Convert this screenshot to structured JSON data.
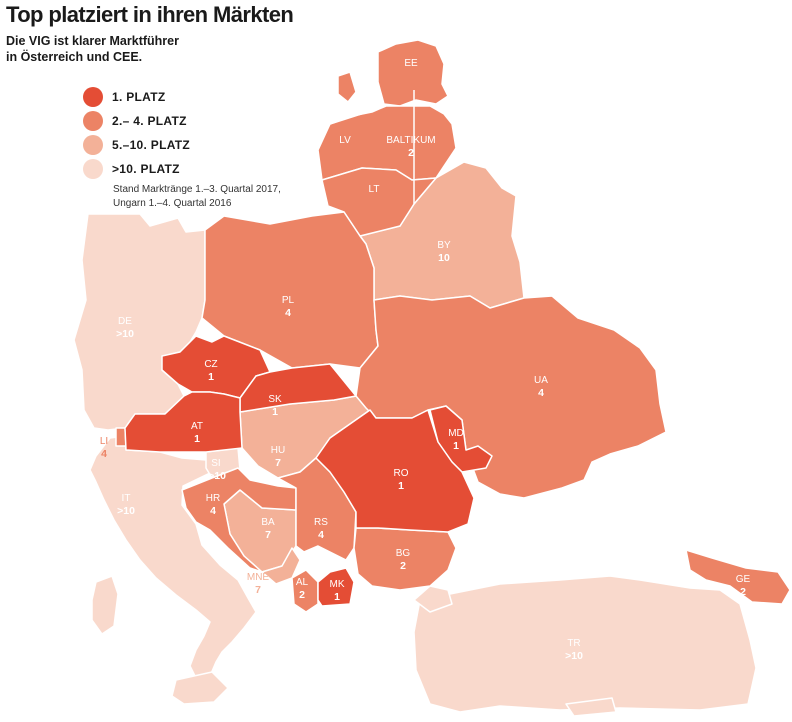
{
  "title": "Top platziert in ihren Märkten",
  "subtitle": [
    "Die VIG ist klarer Marktführer",
    "in Österreich und CEE."
  ],
  "colors": {
    "rank1": "#e44d35",
    "rank2_4": "#ec8365",
    "rank5_10": "#f3b198",
    "rank_gt10": "#f9d9cc"
  },
  "legend": [
    {
      "label": "1. PLATZ",
      "color": "#e44d35"
    },
    {
      "label": "2.– 4. PLATZ",
      "color": "#ec8365"
    },
    {
      "label": "5.–10. PLATZ",
      "color": "#f3b198"
    },
    {
      "label": ">10. PLATZ",
      "color": "#f9d9cc"
    }
  ],
  "note": [
    "Stand Marktränge 1.–3. Quartal 2017,",
    "Ungarn 1.–4. Quartal 2016"
  ],
  "countries": [
    {
      "code": "EE",
      "rank": ""
    },
    {
      "code": "LV",
      "rank": ""
    },
    {
      "code": "BALTIKUM",
      "rank": "2"
    },
    {
      "code": "LT",
      "rank": ""
    },
    {
      "code": "BY",
      "rank": "10"
    },
    {
      "code": "PL",
      "rank": "4"
    },
    {
      "code": "DE",
      "rank": ">10"
    },
    {
      "code": "CZ",
      "rank": "1"
    },
    {
      "code": "SK",
      "rank": "1"
    },
    {
      "code": "UA",
      "rank": "4"
    },
    {
      "code": "AT",
      "rank": "1"
    },
    {
      "code": "LI",
      "rank": "4"
    },
    {
      "code": "HU",
      "rank": "7"
    },
    {
      "code": "MD",
      "rank": "1"
    },
    {
      "code": "SI",
      "rank": ">10"
    },
    {
      "code": "RO",
      "rank": "1"
    },
    {
      "code": "IT",
      "rank": ">10"
    },
    {
      "code": "HR",
      "rank": "4"
    },
    {
      "code": "BA",
      "rank": "7"
    },
    {
      "code": "RS",
      "rank": "4"
    },
    {
      "code": "BG",
      "rank": "2"
    },
    {
      "code": "MNE",
      "rank": "7"
    },
    {
      "code": "AL",
      "rank": "2"
    },
    {
      "code": "MK",
      "rank": "1"
    },
    {
      "code": "GE",
      "rank": "2"
    },
    {
      "code": "TR",
      "rank": ">10"
    }
  ]
}
